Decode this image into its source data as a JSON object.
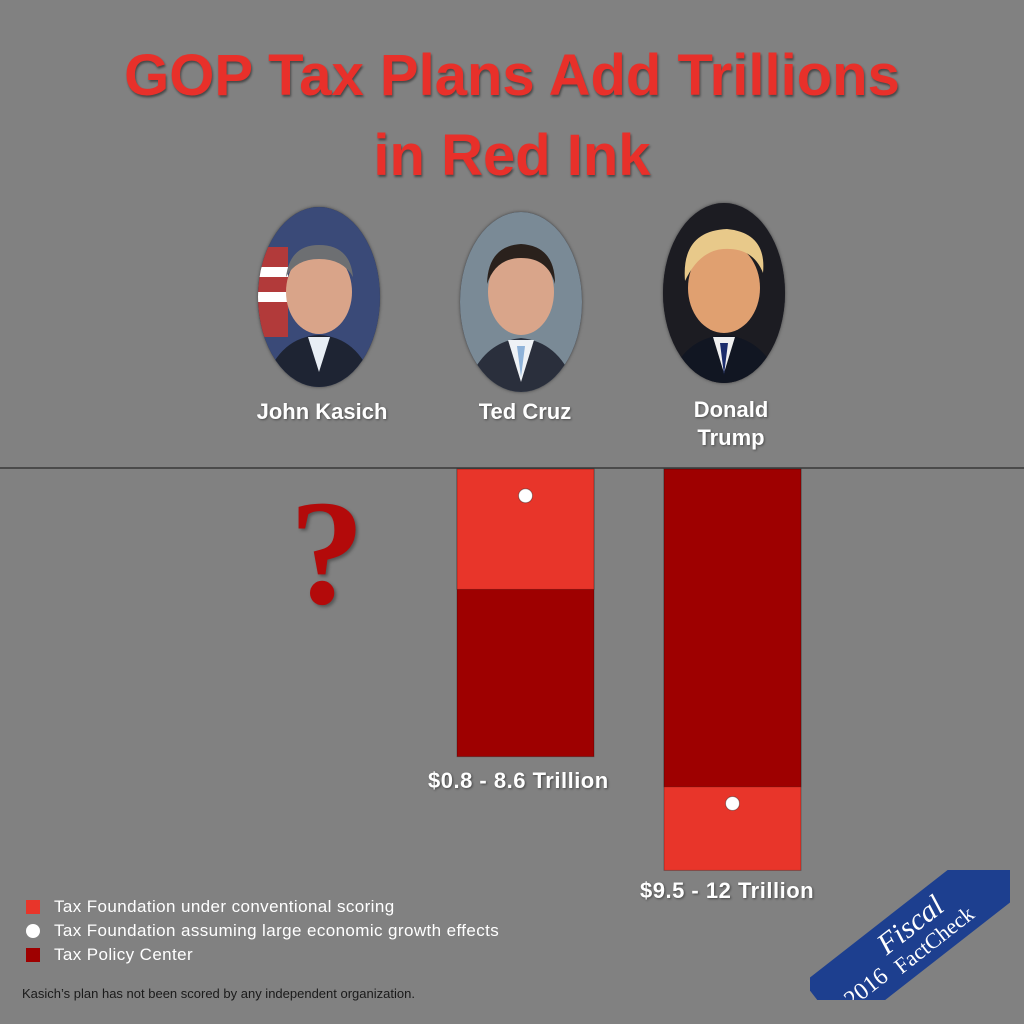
{
  "title": {
    "line1": "GOP Tax Plans Add Trillions",
    "line2": "in Red Ink"
  },
  "candidates": [
    {
      "name": "John Kasich",
      "icon": "portrait-kasich"
    },
    {
      "name": "Ted Cruz",
      "icon": "portrait-cruz"
    },
    {
      "name_line1": "Donald",
      "name_line2": "Trump",
      "icon": "portrait-trump"
    }
  ],
  "chart_data": {
    "type": "bar",
    "unit": "Trillion",
    "categories": [
      "John Kasich",
      "Ted Cruz",
      "Donald Trump"
    ],
    "series": [
      {
        "name": "Tax Foundation under conventional scoring",
        "values": [
          null,
          3.6,
          12
        ],
        "color": "#e8352a"
      },
      {
        "name": "Tax Foundation assuming large economic growth effects",
        "values": [
          null,
          0.8,
          10
        ],
        "color": "#ffffff"
      },
      {
        "name": "Tax Policy Center",
        "values": [
          null,
          8.6,
          9.5
        ],
        "color": "#9e0000"
      }
    ],
    "range_labels": [
      "",
      "$0.8 - 8.6 Trillion",
      "$9.5 - 12 Trillion"
    ],
    "unscored_marker": "?",
    "ylim": [
      0,
      12
    ],
    "orientation": "bars hang downward from baseline"
  },
  "legend": [
    {
      "label": "Tax Foundation under conventional scoring",
      "shape": "square",
      "color": "#e8352a"
    },
    {
      "label": "Tax Foundation assuming large economic growth effects",
      "shape": "circle",
      "color": "#ffffff"
    },
    {
      "label": "Tax Policy Center",
      "shape": "square",
      "color": "#9e0000"
    }
  ],
  "footnote": "Kasich’s plan has not been scored by any independent organization.",
  "badge": {
    "year": "2016",
    "line1": "Fiscal",
    "line2": "FactCheck",
    "color": "#1d3f8f"
  },
  "colors": {
    "background": "#818181",
    "title": "#e8302a",
    "question_mark": "#b30a0a"
  }
}
